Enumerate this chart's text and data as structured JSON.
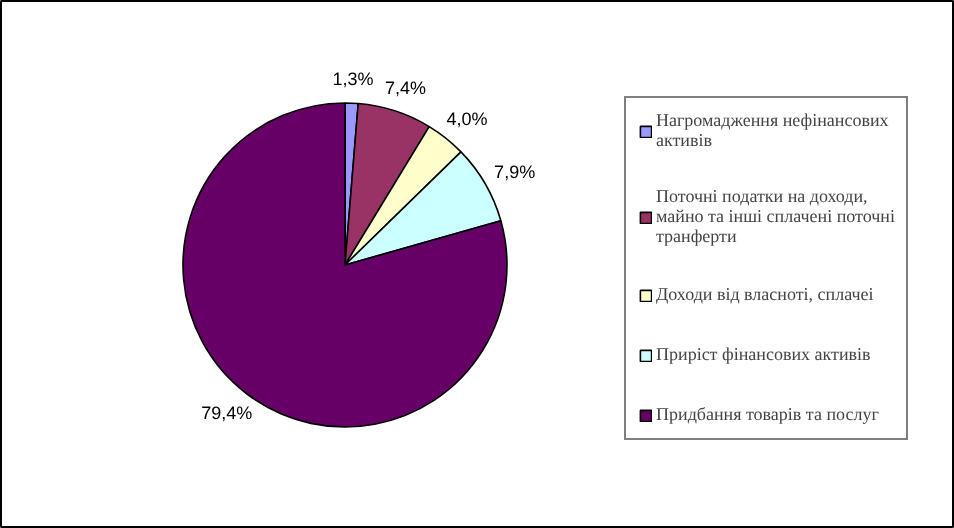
{
  "chart_data": {
    "type": "pie",
    "categories": [
      "Нагромадження нефінансових активів",
      "Поточні податки на доходи, майно та інші сплачені поточні транферти",
      "Доходи від власноті, сплачеі",
      "Приріст фінансових активів",
      "Придбання товарів та послуг"
    ],
    "values": [
      1.3,
      7.4,
      4.0,
      7.9,
      79.4
    ],
    "colors": [
      "#9999ff",
      "#993366",
      "#ffffcc",
      "#ccffff",
      "#660066"
    ],
    "value_labels": [
      "1,3%",
      "7,4%",
      "4,0%",
      "7,9%",
      "79,4%"
    ],
    "legend": "right"
  }
}
